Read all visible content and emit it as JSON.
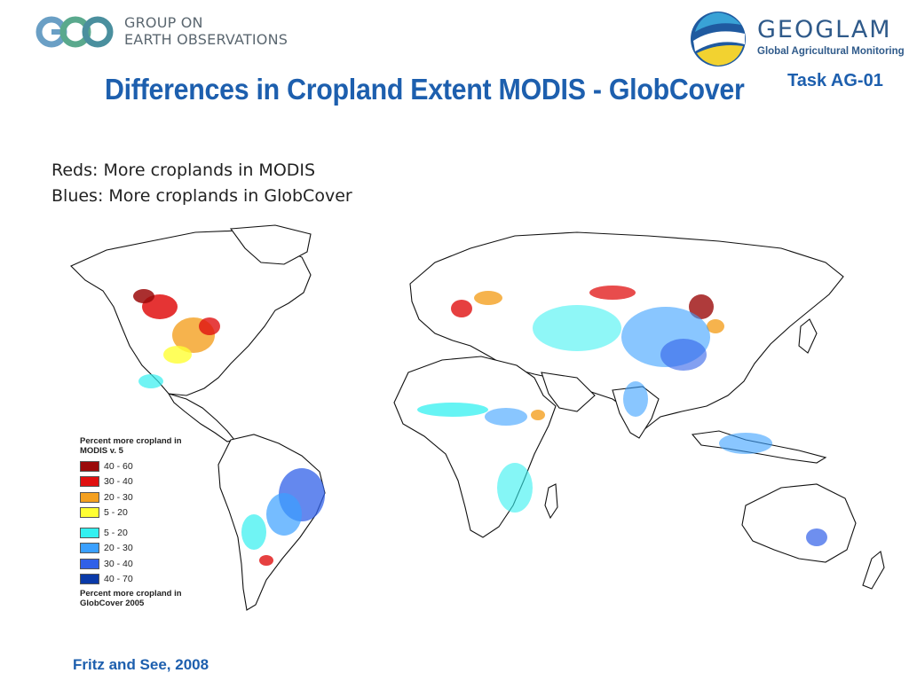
{
  "header": {
    "geo_logo": {
      "line1": "GROUP ON",
      "line2": "EARTH OBSERVATIONS",
      "mark_colors": [
        "#6a9fc5",
        "#5aa98d",
        "#4a8f9e"
      ]
    },
    "geoglam_logo": {
      "name": "GEOGLAM",
      "tagline": "Global Agricultural Monitoring",
      "mark_colors": [
        "#1f5aa0",
        "#f2d230",
        "#39a2d6"
      ]
    },
    "task_label": "Task AG-01",
    "title": "Differences in Cropland Extent MODIS - GlobCover"
  },
  "subtitle": {
    "line1": "Reds: More croplands in MODIS",
    "line2": "Blues: More croplands in GlobCover"
  },
  "legend": {
    "header_top": "Percent more cropland in MODIS v. 5",
    "header_bottom": "Percent more cropland in GlobCover 2005",
    "modis_items": [
      {
        "label": "40 - 60",
        "color": "#9b0a0a"
      },
      {
        "label": "30 - 40",
        "color": "#e01010"
      },
      {
        "label": "20 - 30",
        "color": "#f4a020"
      },
      {
        "label": "5 - 20",
        "color": "#ffff33"
      }
    ],
    "globcover_items": [
      {
        "label": "5 - 20",
        "color": "#33f0f0"
      },
      {
        "label": "20 - 30",
        "color": "#3aa0ff"
      },
      {
        "label": "30 - 40",
        "color": "#3060e8"
      },
      {
        "label": "40 - 70",
        "color": "#0a3aa8"
      }
    ]
  },
  "citation": "Fritz and See, 2008"
}
